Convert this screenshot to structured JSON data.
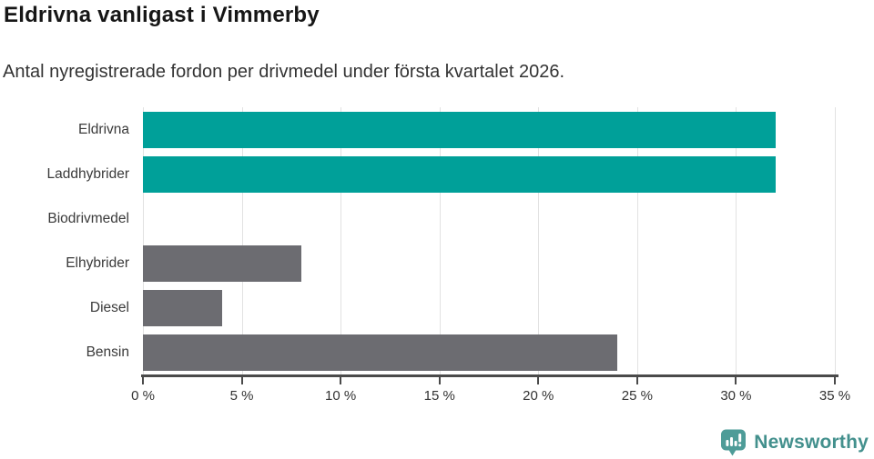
{
  "title": "Eldrivna vanligast i Vimmerby",
  "subtitle": "Antal nyregistrerade fordon per drivmedel under första kvartalet 2026.",
  "chart_data": {
    "type": "bar",
    "orientation": "horizontal",
    "title": "Eldrivna vanligast i Vimmerby",
    "subtitle": "Antal nyregistrerade fordon per drivmedel under första kvartalet 2026.",
    "categories": [
      "Eldrivna",
      "Laddhybrider",
      "Biodrivmedel",
      "Elhybrider",
      "Diesel",
      "Bensin"
    ],
    "values": [
      32,
      32,
      0,
      8,
      4,
      24
    ],
    "unit": "%",
    "xlim": [
      0,
      35
    ],
    "x_tick_values": [
      0,
      5,
      10,
      15,
      20,
      25,
      30,
      35
    ],
    "x_ticks": [
      "0 %",
      "5 %",
      "10 %",
      "15 %",
      "20 %",
      "25 %",
      "30 %",
      "35 %"
    ],
    "grid": true,
    "legend": false,
    "bar_colors": [
      "#00a099",
      "#00a099",
      "#6c6c71",
      "#6c6c71",
      "#6c6c71",
      "#6c6c71"
    ]
  },
  "colors": {
    "highlight": "#00a099",
    "default_bar": "#6c6c71",
    "axis": "#4a4a4a",
    "gridline": "#e2e2e2",
    "logo_bubble": "#4e9c98",
    "logo_text": "#43908d"
  },
  "branding": {
    "logo_text": "Newsworthy"
  }
}
